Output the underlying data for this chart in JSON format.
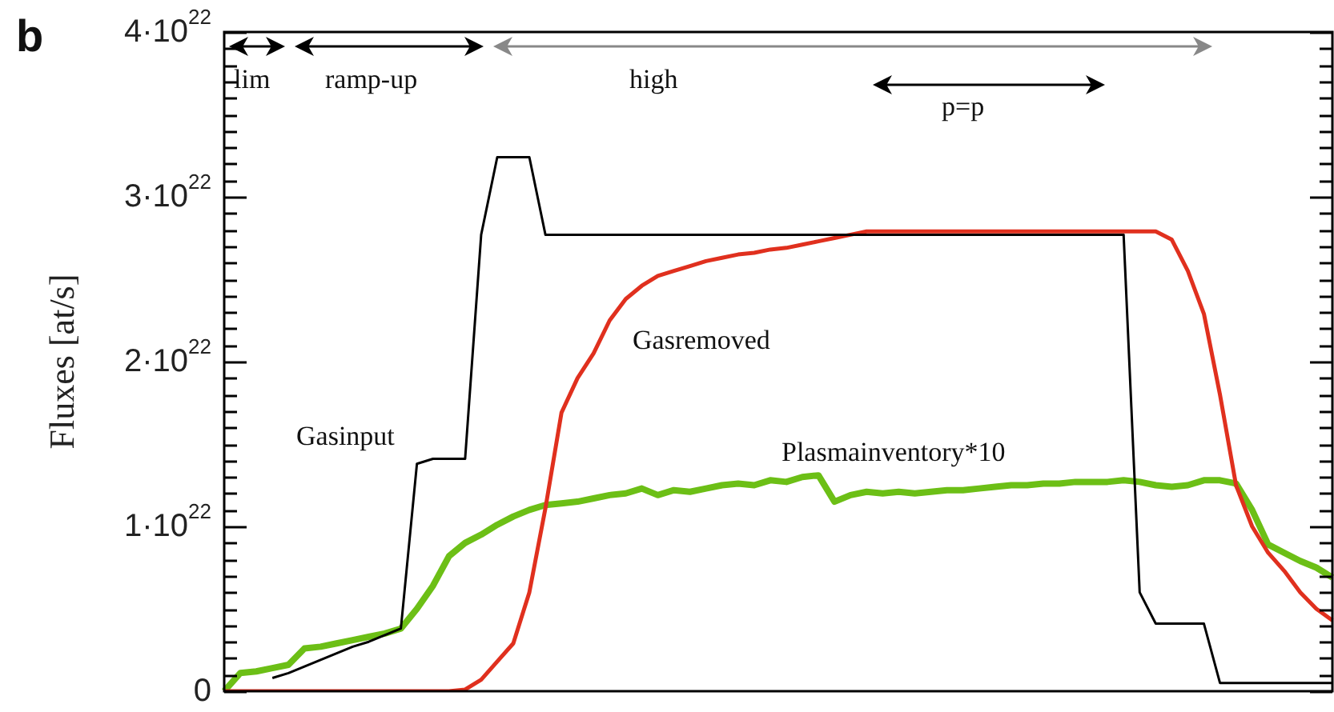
{
  "chart_data": {
    "type": "line",
    "ylabel": "Fluxes [at/s]",
    "tick_labels": "y",
    "ylim": [
      0,
      4e+22
    ],
    "yticks": [
      0,
      {
        "value": 1e+22,
        "label": "1·10$^{22}$"
      },
      {
        "value": 2e+22,
        "label": "2·10$^{22}$"
      },
      {
        "value": 3e+22,
        "label": "3·10$^{22}$"
      },
      {
        "value": 4e+22,
        "label": "4·10$^{22}$"
      },
      {
        "value": 1e+21,
        "label": null
      },
      {
        "value": 2e+21,
        "label": null
      },
      {
        "value": 3e+21,
        "label": null
      },
      {
        "value": 4e+21,
        "label": null
      },
      {
        "value": 5e+21,
        "label": null
      },
      {
        "value": 6e+21,
        "label": null
      },
      {
        "value": 7e+21,
        "label": null
      },
      {
        "value": 8e+21,
        "label": null
      },
      {
        "value": 9e+21,
        "label": null
      },
      {
        "value": 1.1e+22,
        "label": null
      },
      {
        "value": 1.2e+22,
        "label": null
      },
      {
        "value": 1.3e+22,
        "label": null
      },
      {
        "value": 1.4e+22,
        "label": null
      },
      {
        "value": 1.5e+22,
        "label": null
      },
      {
        "value": 1.6e+22,
        "label": null
      },
      {
        "value": 1.7e+22,
        "label": null
      },
      {
        "value": 1.8e+22,
        "label": null
      },
      {
        "value": 1.9e+22,
        "label": null
      },
      {
        "value": 2.1e+22,
        "label": null
      },
      {
        "value": 2.2e+22,
        "label": null
      },
      {
        "value": 2.3e+22,
        "label": null
      },
      {
        "value": 2.4e+22,
        "label": null
      },
      {
        "value": 2.5e+22,
        "label": null
      },
      {
        "value": 2.6e+22,
        "label": null
      },
      {
        "value": 2.7e+22,
        "label": null
      },
      {
        "value": 2.8e+22,
        "label": null
      },
      {
        "value": 2.9e+22,
        "label": null
      },
      {
        "value": 3.1e+22,
        "label": null
      },
      {
        "value": 3.2e+22,
        "label": null
      },
      {
        "value": 3.3e+22,
        "label": null
      },
      {
        "value": 3.4e+22,
        "label": null
      },
      {
        "value": 3.5e+22,
        "label": null
      },
      {
        "value": 3.6e+22,
        "label": null
      },
      {
        "value": 3.7e+22,
        "label": null
      },
      {
        "value": 3.8e+22,
        "label": null
      },
      {
        "value": 3.9e+22,
        "label": null
      }
    ],
    "annotations": [
      "b",
      "lim",
      "ramp-up",
      "high",
      "p=p"
    ],
    "categories": [
      null,
      null,
      null,
      null,
      null,
      null,
      null,
      null,
      null,
      null,
      null,
      null,
      null,
      null,
      null,
      null,
      null,
      null,
      null,
      null,
      null,
      null,
      null,
      null,
      null,
      null,
      null,
      null,
      null,
      null,
      null,
      null,
      null,
      null,
      null,
      null,
      null,
      null,
      null,
      null,
      null,
      null,
      null,
      null,
      null,
      null,
      null,
      null,
      null,
      null,
      null,
      null,
      null,
      null,
      null,
      null,
      null,
      null,
      null,
      null,
      null,
      null,
      null,
      null,
      null,
      null,
      null,
      null,
      null,
      null
    ],
    "series": [
      {
        "name": "Gasinput",
        "color": "#000000",
        "values": [
          null,
          null,
          null,
          8e+20,
          1.1e+21,
          1.5e+21,
          1.9e+21,
          2.3e+21,
          2.7e+21,
          3e+21,
          3.4e+21,
          3.8e+21,
          1.38e+22,
          1.41e+22,
          1.41e+22,
          1.41e+22,
          2.77e+22,
          3.24e+22,
          3.24e+22,
          3.24e+22,
          2.77e+22,
          2.77e+22,
          2.77e+22,
          2.77e+22,
          2.77e+22,
          2.77e+22,
          2.77e+22,
          2.77e+22,
          2.77e+22,
          2.77e+22,
          2.77e+22,
          2.77e+22,
          2.77e+22,
          2.77e+22,
          2.77e+22,
          2.77e+22,
          2.77e+22,
          2.77e+22,
          2.77e+22,
          2.77e+22,
          2.77e+22,
          2.77e+22,
          2.77e+22,
          2.77e+22,
          2.77e+22,
          2.77e+22,
          2.77e+22,
          2.77e+22,
          2.77e+22,
          2.77e+22,
          2.77e+22,
          2.77e+22,
          2.77e+22,
          2.77e+22,
          2.77e+22,
          2.77e+22,
          2.77e+22,
          6e+21,
          4.1e+21,
          4.1e+21,
          4.1e+21,
          4.1e+21,
          5e+20,
          5e+20,
          5e+20,
          5e+20,
          5e+20,
          5e+20,
          5e+20,
          5e+20
        ]
      },
      {
        "name": "Gasremoved",
        "color": "#e0301e",
        "values": [
          0,
          0,
          0,
          0,
          0,
          0,
          0,
          0,
          0,
          0,
          0,
          0,
          0,
          0,
          0,
          1e+20,
          7e+20,
          1.8e+21,
          2.9e+21,
          6e+21,
          1.11e+22,
          1.69e+22,
          1.9e+22,
          2.05e+22,
          2.25e+22,
          2.38e+22,
          2.46e+22,
          2.52e+22,
          2.55e+22,
          2.58e+22,
          2.61e+22,
          2.63e+22,
          2.65e+22,
          2.66e+22,
          2.68e+22,
          2.69e+22,
          2.71e+22,
          2.73e+22,
          2.75e+22,
          2.77e+22,
          2.79e+22,
          2.79e+22,
          2.79e+22,
          2.79e+22,
          2.79e+22,
          2.79e+22,
          2.79e+22,
          2.79e+22,
          2.79e+22,
          2.79e+22,
          2.79e+22,
          2.79e+22,
          2.79e+22,
          2.79e+22,
          2.79e+22,
          2.79e+22,
          2.79e+22,
          2.79e+22,
          2.79e+22,
          2.74e+22,
          2.55e+22,
          2.29e+22,
          1.8e+22,
          1.25e+22,
          1e+22,
          8.4e+21,
          7.3e+21,
          6e+21,
          5e+21,
          4.3e+21
        ]
      },
      {
        "name": "Plasmainventory*10",
        "color": "#6cbf16",
        "values": [
          0,
          1.1e+21,
          1.2e+21,
          1.4e+21,
          1.6e+21,
          2.6e+21,
          2.7e+21,
          2.9e+21,
          3.1e+21,
          3.3e+21,
          3.5e+21,
          3.8e+21,
          5e+21,
          6.4e+21,
          8.2e+21,
          9e+21,
          9.5e+21,
          1.01e+22,
          1.06e+22,
          1.1e+22,
          1.13e+22,
          1.14e+22,
          1.15e+22,
          1.17e+22,
          1.19e+22,
          1.2e+22,
          1.23e+22,
          1.19e+22,
          1.22e+22,
          1.21e+22,
          1.23e+22,
          1.25e+22,
          1.26e+22,
          1.25e+22,
          1.28e+22,
          1.27e+22,
          1.3e+22,
          1.31e+22,
          1.15e+22,
          1.19e+22,
          1.21e+22,
          1.2e+22,
          1.21e+22,
          1.2e+22,
          1.21e+22,
          1.22e+22,
          1.22e+22,
          1.23e+22,
          1.24e+22,
          1.25e+22,
          1.25e+22,
          1.26e+22,
          1.26e+22,
          1.27e+22,
          1.27e+22,
          1.27e+22,
          1.28e+22,
          1.27e+22,
          1.25e+22,
          1.24e+22,
          1.25e+22,
          1.28e+22,
          1.28e+22,
          1.26e+22,
          1.1e+22,
          8.9e+21,
          8.4e+21,
          7.9e+21,
          7.5e+21,
          6.9e+21
        ]
      }
    ]
  }
}
